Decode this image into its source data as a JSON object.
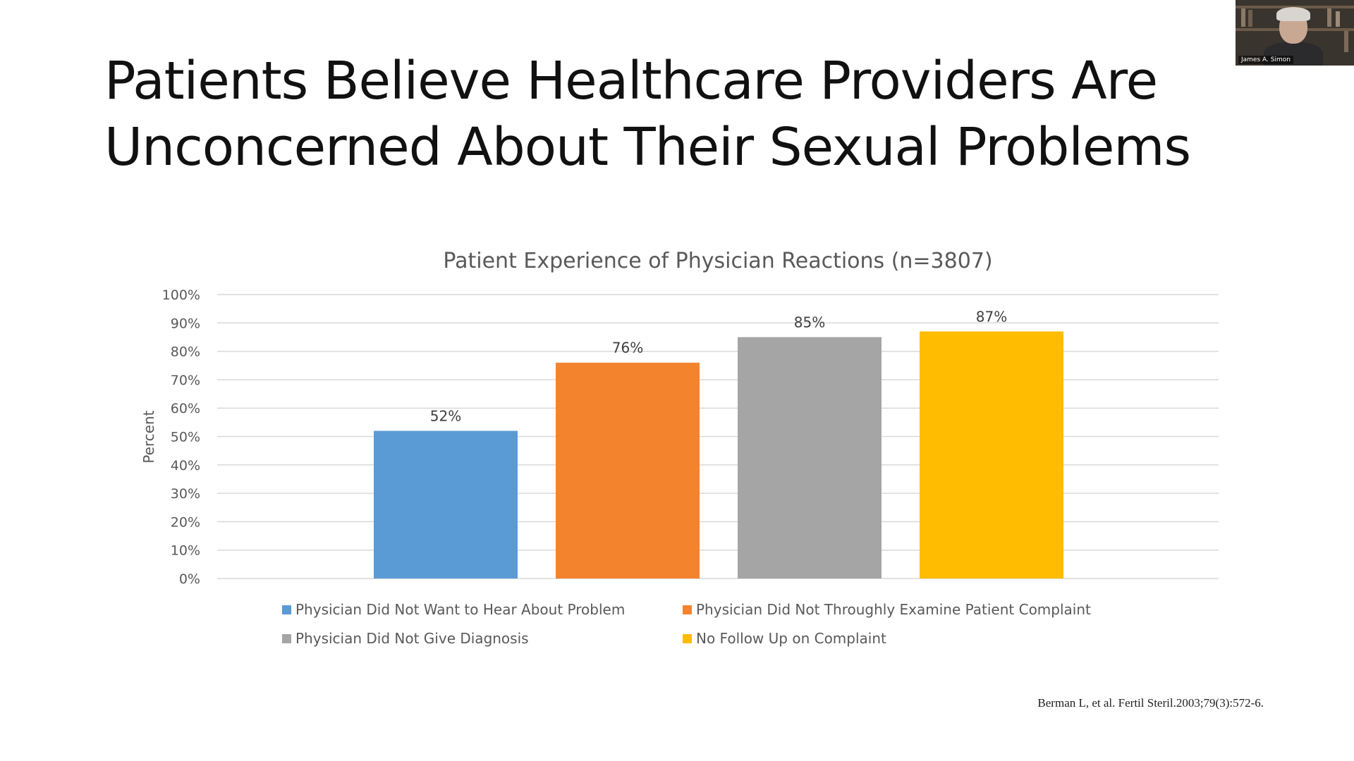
{
  "slide": {
    "title_line1": "Patients Believe Healthcare Providers Are",
    "title_line2": "Unconcerned About Their Sexual Problems",
    "citation": "Berman L, et al. Fertil Steril.2003;79(3):572-6."
  },
  "video": {
    "participant_name": "James A. Simon"
  },
  "chart_data": {
    "type": "bar",
    "title": "Patient Experience of Physician Reactions (n=3807)",
    "ylabel": "Percent",
    "xlabel": "",
    "ylim": [
      0,
      100
    ],
    "yticks": [
      0,
      10,
      20,
      30,
      40,
      50,
      60,
      70,
      80,
      90,
      100
    ],
    "ytick_format": "%",
    "grid": true,
    "legend_position": "bottom",
    "series": [
      {
        "name": "Physician Did Not Want to Hear About Problem",
        "value": 52,
        "label": "52%",
        "color": "#5b9bd5"
      },
      {
        "name": "Physician Did Not Throughly Examine Patient Complaint",
        "value": 76,
        "label": "76%",
        "color": "#f4832e"
      },
      {
        "name": "Physician Did Not Give Diagnosis",
        "value": 85,
        "label": "85%",
        "color": "#a5a5a5"
      },
      {
        "name": "No Follow Up on Complaint",
        "value": 87,
        "label": "87%",
        "color": "#ffbc00"
      }
    ]
  }
}
